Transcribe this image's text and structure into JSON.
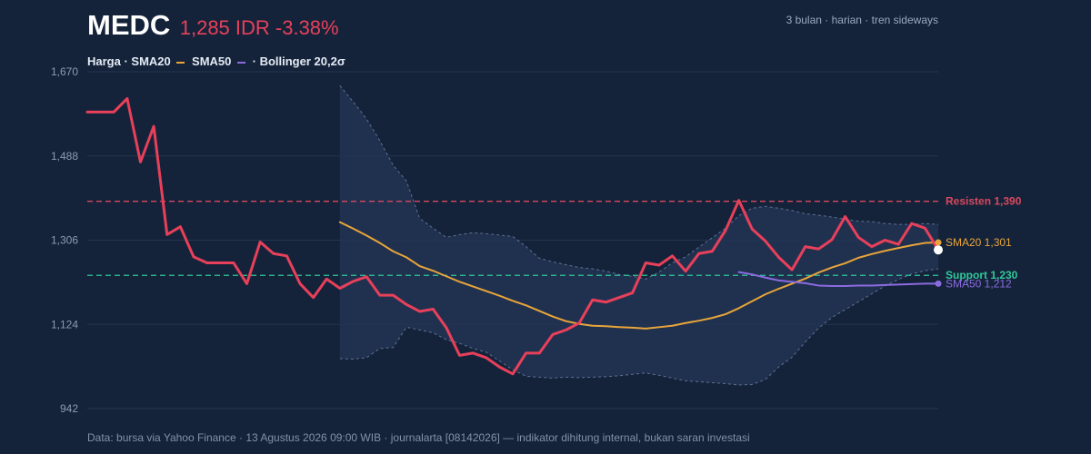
{
  "header": {
    "ticker": "MEDC",
    "price_change": "1,285 IDR -3.38%",
    "meta": "3 bulan · harian · tren sideways"
  },
  "legend": {
    "harga": "Harga ·",
    "sma20": "SMA20",
    "sma50": "SMA50",
    "bollinger": "· Bollinger 20,2σ"
  },
  "footer": "Data: bursa via Yahoo Finance · 13 Agustus 2026 09:00 WIB · journalarta [08142026] — indikator dihitung internal, bukan saran investasi",
  "colors": {
    "background": "#15233a",
    "price": "#e8405a",
    "sma20": "#e9a53a",
    "sma50": "#8b6be0",
    "band_fill": "#223453",
    "band_edge": "#6f83a6",
    "support": "#2fc99a",
    "resistance": "#d8485e",
    "grid": "#24344f"
  },
  "chart_data": {
    "type": "line",
    "ylim": [
      942,
      1670
    ],
    "yticks": [
      {
        "value": 942,
        "label": "942"
      },
      {
        "value": 1124,
        "label": "1,124"
      },
      {
        "value": 1306,
        "label": "1,306"
      },
      {
        "value": 1488,
        "label": "1,488"
      },
      {
        "value": 1670,
        "label": "1,670"
      }
    ],
    "grid": true,
    "n_sessions": 65,
    "price": [
      1583,
      1583,
      1583,
      1612,
      1475,
      1552,
      1318,
      1335,
      1270,
      1257,
      1257,
      1257,
      1212,
      1302,
      1277,
      1272,
      1212,
      1182,
      1222,
      1202,
      1217,
      1227,
      1187,
      1187,
      1167,
      1152,
      1157,
      1117,
      1057,
      1062,
      1052,
      1032,
      1017,
      1062,
      1062,
      1102,
      1112,
      1127,
      1177,
      1172,
      1182,
      1192,
      1257,
      1252,
      1272,
      1239,
      1277,
      1282,
      1327,
      1392,
      1330,
      1304,
      1269,
      1242,
      1292,
      1287,
      1307,
      1357,
      1312,
      1292,
      1306,
      1297,
      1342,
      1332,
      1285
    ],
    "sma20": [
      null,
      null,
      null,
      null,
      null,
      null,
      null,
      null,
      null,
      null,
      null,
      null,
      null,
      null,
      null,
      null,
      null,
      null,
      null,
      1345,
      1331,
      1316,
      1300,
      1282,
      1269,
      1250,
      1240,
      1228,
      1216,
      1206,
      1196,
      1186,
      1175,
      1165,
      1153,
      1141,
      1131,
      1125,
      1121,
      1120,
      1118,
      1117,
      1115,
      1118,
      1121,
      1127,
      1132,
      1138,
      1146,
      1159,
      1174,
      1189,
      1201,
      1212,
      1223,
      1236,
      1247,
      1256,
      1268,
      1276,
      1283,
      1289,
      1295,
      1300,
      1301
    ],
    "sma50": [
      null,
      null,
      null,
      null,
      null,
      null,
      null,
      null,
      null,
      null,
      null,
      null,
      null,
      null,
      null,
      null,
      null,
      null,
      null,
      null,
      null,
      null,
      null,
      null,
      null,
      null,
      null,
      null,
      null,
      null,
      null,
      null,
      null,
      null,
      null,
      null,
      null,
      null,
      null,
      null,
      null,
      null,
      null,
      null,
      null,
      null,
      null,
      null,
      null,
      1237,
      1232,
      1225,
      1219,
      1216,
      1213,
      1208,
      1207,
      1207,
      1208,
      1208,
      1209,
      1210,
      1211,
      1212,
      1212
    ],
    "bollinger_upper": [
      null,
      null,
      null,
      null,
      null,
      null,
      null,
      null,
      null,
      null,
      null,
      null,
      null,
      null,
      null,
      null,
      null,
      null,
      null,
      1640,
      1605,
      1568,
      1521,
      1468,
      1434,
      1353,
      1332,
      1312,
      1318,
      1322,
      1320,
      1317,
      1314,
      1292,
      1267,
      1259,
      1253,
      1247,
      1244,
      1239,
      1232,
      1228,
      1222,
      1237,
      1257,
      1270,
      1291,
      1311,
      1332,
      1359,
      1375,
      1379,
      1375,
      1370,
      1363,
      1360,
      1356,
      1351,
      1347,
      1346,
      1342,
      1340,
      1340,
      1342,
      1340
    ],
    "bollinger_lower": [
      null,
      null,
      null,
      null,
      null,
      null,
      null,
      null,
      null,
      null,
      null,
      null,
      null,
      null,
      null,
      null,
      null,
      null,
      null,
      1050,
      1049,
      1052,
      1072,
      1074,
      1118,
      1112,
      1106,
      1091,
      1083,
      1072,
      1064,
      1045,
      1026,
      1012,
      1010,
      1008,
      1010,
      1009,
      1010,
      1011,
      1013,
      1016,
      1019,
      1014,
      1008,
      1002,
      1000,
      998,
      996,
      993,
      994,
      1005,
      1032,
      1053,
      1086,
      1116,
      1139,
      1156,
      1173,
      1190,
      1207,
      1221,
      1233,
      1240,
      1244
    ],
    "support": {
      "value": 1230,
      "label": "Support 1,230"
    },
    "resistance": {
      "value": 1390,
      "label": "Resisten 1,390"
    },
    "end_labels": {
      "sma20": "SMA20 1,301",
      "sma50": "SMA50 1,212"
    }
  }
}
